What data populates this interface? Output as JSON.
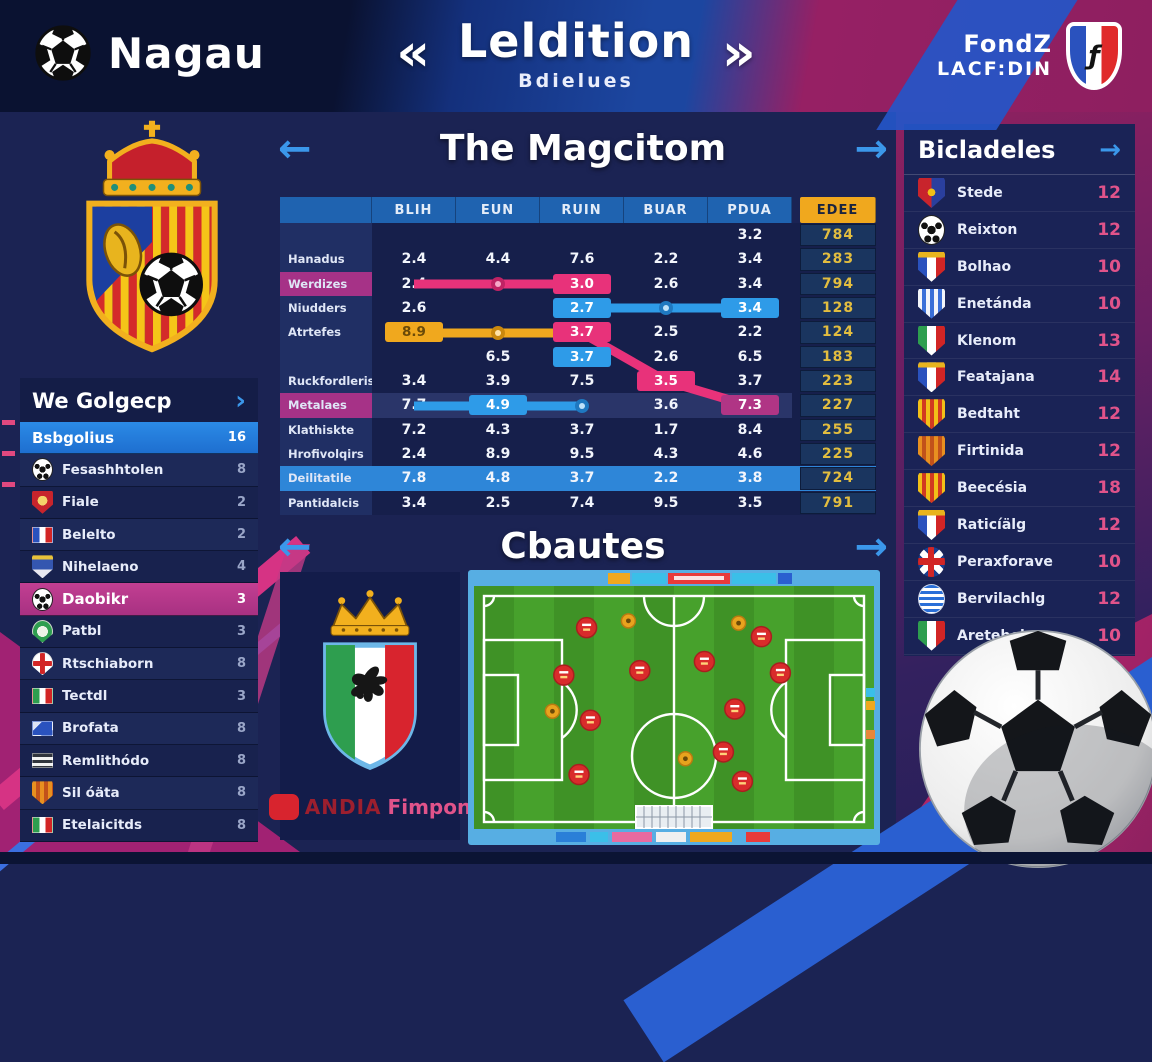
{
  "header": {
    "brand": "Nagau",
    "nav_prev": "«",
    "nav_next": "»",
    "title": "Leldition",
    "subtitle": "Bdielues",
    "league": {
      "line1": "FondZ",
      "line2": "LACF:DIN"
    }
  },
  "sections": {
    "matrix": {
      "title": "The Magcitom",
      "prev": "←",
      "next": "→"
    },
    "charts": {
      "title": "Cbautes",
      "prev": "←",
      "next": "→"
    }
  },
  "left_panel": {
    "title": "We Golgecp",
    "arrow": "›",
    "items": [
      {
        "label": "Bsbgolius",
        "value": "16",
        "icon": "none",
        "highlight": "blue"
      },
      {
        "label": "Fesashhtolen",
        "value": "8",
        "icon": "ball"
      },
      {
        "label": "Fiale",
        "value": "2",
        "icon": "crest-red"
      },
      {
        "label": "Belelto",
        "value": "2",
        "icon": "flag-france"
      },
      {
        "label": "Nihelaeno",
        "value": "4",
        "icon": "crest-blue"
      },
      {
        "label": "Daobikr",
        "value": "3",
        "icon": "ball",
        "highlight": "pink"
      },
      {
        "label": "Patbl",
        "value": "3",
        "icon": "crest-green"
      },
      {
        "label": "Rtschiaborn",
        "value": "8",
        "icon": "crest-cross"
      },
      {
        "label": "Tectdl",
        "value": "3",
        "icon": "flag-italy"
      },
      {
        "label": "Brofata",
        "value": "8",
        "icon": "flag-blue"
      },
      {
        "label": "Remlithódo",
        "value": "8",
        "icon": "flag-stripes"
      },
      {
        "label": "Sil óäta",
        "value": "8",
        "icon": "crest-orange"
      },
      {
        "label": "Etelaicitds",
        "value": "8",
        "icon": "flag-italy"
      }
    ]
  },
  "matrix": {
    "columns": [
      "",
      "BLIH",
      "EUN",
      "RUIN",
      "BUAR",
      "PDUA",
      "EDEE"
    ],
    "rows": [
      {
        "label": "",
        "cells": [
          {
            "v": ""
          },
          {
            "v": ""
          },
          {
            "v": ""
          },
          {
            "v": ""
          },
          {
            "v": "3.2"
          }
        ],
        "edge": "784"
      },
      {
        "label": "Hanadus",
        "cells": [
          {
            "v": "2.4"
          },
          {
            "v": "4.4"
          },
          {
            "v": "7.6"
          },
          {
            "v": "2.2"
          },
          {
            "v": "3.4"
          }
        ],
        "edge": "283"
      },
      {
        "label": "Werdizes",
        "label_style": "magenta",
        "cells": [
          {
            "v": "2.4"
          },
          {
            "v": ""
          },
          {
            "v": "3.0",
            "chip": "pink"
          },
          {
            "v": "2.6"
          },
          {
            "v": "3.4"
          }
        ],
        "edge": "794"
      },
      {
        "label": "Niudders",
        "cells": [
          {
            "v": "2.6"
          },
          {
            "v": ""
          },
          {
            "v": "2.7",
            "chip": "blue"
          },
          {
            "v": ""
          },
          {
            "v": "3.4",
            "chip": "blue"
          }
        ],
        "edge": "128"
      },
      {
        "label": "Atrtefes",
        "cells": [
          {
            "v": "8.9",
            "chip": "orange"
          },
          {
            "v": ""
          },
          {
            "v": "3.7",
            "chip": "pink"
          },
          {
            "v": "2.5"
          },
          {
            "v": "2.2"
          }
        ],
        "edge": "124"
      },
      {
        "label": "",
        "cells": [
          {
            "v": ""
          },
          {
            "v": "6.5"
          },
          {
            "v": "3.7",
            "chip": "blue"
          },
          {
            "v": "2.6"
          },
          {
            "v": "6.5"
          }
        ],
        "edge": "183"
      },
      {
        "label": "Ruckfordleris",
        "cells": [
          {
            "v": "3.4"
          },
          {
            "v": "3.9"
          },
          {
            "v": "7.5"
          },
          {
            "v": "3.5",
            "chip": "pink"
          },
          {
            "v": "3.7"
          }
        ],
        "edge": "223"
      },
      {
        "label": "Metalaes",
        "label_style": "magenta",
        "row_style": "tint",
        "cells": [
          {
            "v": "7.7"
          },
          {
            "v": "4.9",
            "chip": "blue"
          },
          {
            "v": ""
          },
          {
            "v": "3.6"
          },
          {
            "v": "7.3",
            "chip": "magenta"
          }
        ],
        "edge": "227"
      },
      {
        "label": "Klathiskte",
        "cells": [
          {
            "v": "7.2"
          },
          {
            "v": "4.3"
          },
          {
            "v": "3.7"
          },
          {
            "v": "1.7"
          },
          {
            "v": "8.4"
          }
        ],
        "edge": "255"
      },
      {
        "label": "Hrofivolqirs",
        "cells": [
          {
            "v": "2.4"
          },
          {
            "v": "8.9"
          },
          {
            "v": "9.5"
          },
          {
            "v": "4.3"
          },
          {
            "v": "4.6"
          }
        ],
        "edge": "225"
      },
      {
        "label": "Deilitatile",
        "row_style": "selected",
        "cells": [
          {
            "v": "7.8"
          },
          {
            "v": "4.8"
          },
          {
            "v": "3.7"
          },
          {
            "v": "2.2"
          },
          {
            "v": "3.8"
          }
        ],
        "edge": "724"
      },
      {
        "label": "Pantidalcis",
        "cells": [
          {
            "v": "3.4"
          },
          {
            "v": "2.5"
          },
          {
            "v": "7.4"
          },
          {
            "v": "9.5"
          },
          {
            "v": "3.5"
          }
        ],
        "edge": "791"
      }
    ]
  },
  "crest_panel": {
    "brand_main": "ANDIA",
    "brand_sub": "Fimpon"
  },
  "pitch": {
    "markers": [
      {
        "x": 27,
        "y": 14,
        "c": "red"
      },
      {
        "x": 73,
        "y": 18,
        "c": "red"
      },
      {
        "x": 21,
        "y": 35,
        "c": "red"
      },
      {
        "x": 41,
        "y": 33,
        "c": "red"
      },
      {
        "x": 58,
        "y": 29,
        "c": "red"
      },
      {
        "x": 78,
        "y": 34,
        "c": "red"
      },
      {
        "x": 28,
        "y": 55,
        "c": "red"
      },
      {
        "x": 66,
        "y": 50,
        "c": "red"
      },
      {
        "x": 25,
        "y": 79,
        "c": "red"
      },
      {
        "x": 63,
        "y": 69,
        "c": "red"
      },
      {
        "x": 68,
        "y": 82,
        "c": "red"
      },
      {
        "x": 38,
        "y": 11,
        "c": "gold"
      },
      {
        "x": 67,
        "y": 12,
        "c": "gold"
      },
      {
        "x": 18,
        "y": 51,
        "c": "gold"
      },
      {
        "x": 53,
        "y": 72,
        "c": "gold"
      }
    ]
  },
  "right_panel": {
    "title": "Bicladeles",
    "arrow": "→",
    "items": [
      {
        "label": "Stede",
        "value": "12",
        "icon": "crest-redblue"
      },
      {
        "label": "Reixton",
        "value": "12",
        "icon": "ball"
      },
      {
        "label": "Bolhao",
        "value": "10",
        "icon": "crest-france"
      },
      {
        "label": "Enetánda",
        "value": "10",
        "icon": "crest-stripes-blue"
      },
      {
        "label": "Klenom",
        "value": "13",
        "icon": "crest-italy"
      },
      {
        "label": "Featajana",
        "value": "14",
        "icon": "crest-france"
      },
      {
        "label": "Bedtaht",
        "value": "12",
        "icon": "crest-goldred"
      },
      {
        "label": "Firtinida",
        "value": "12",
        "icon": "crest-orange"
      },
      {
        "label": "Beecésia",
        "value": "18",
        "icon": "crest-goldred"
      },
      {
        "label": "Raticíälg",
        "value": "12",
        "icon": "crest-france"
      },
      {
        "label": "Peraxforave",
        "value": "10",
        "icon": "round-uk"
      },
      {
        "label": "Bervilachlg",
        "value": "12",
        "icon": "round-greece"
      },
      {
        "label": "Aretebelsae",
        "value": "10",
        "icon": "crest-italy"
      }
    ]
  },
  "colors": {
    "accent_blue": "#2f8fe8",
    "accent_pink": "#e8327a",
    "accent_magenta": "#a63287",
    "accent_orange": "#f0a81e",
    "edge_gold": "#e2bd3f",
    "value_pink": "#e0538a",
    "pitch_green": "#4aa92e"
  }
}
